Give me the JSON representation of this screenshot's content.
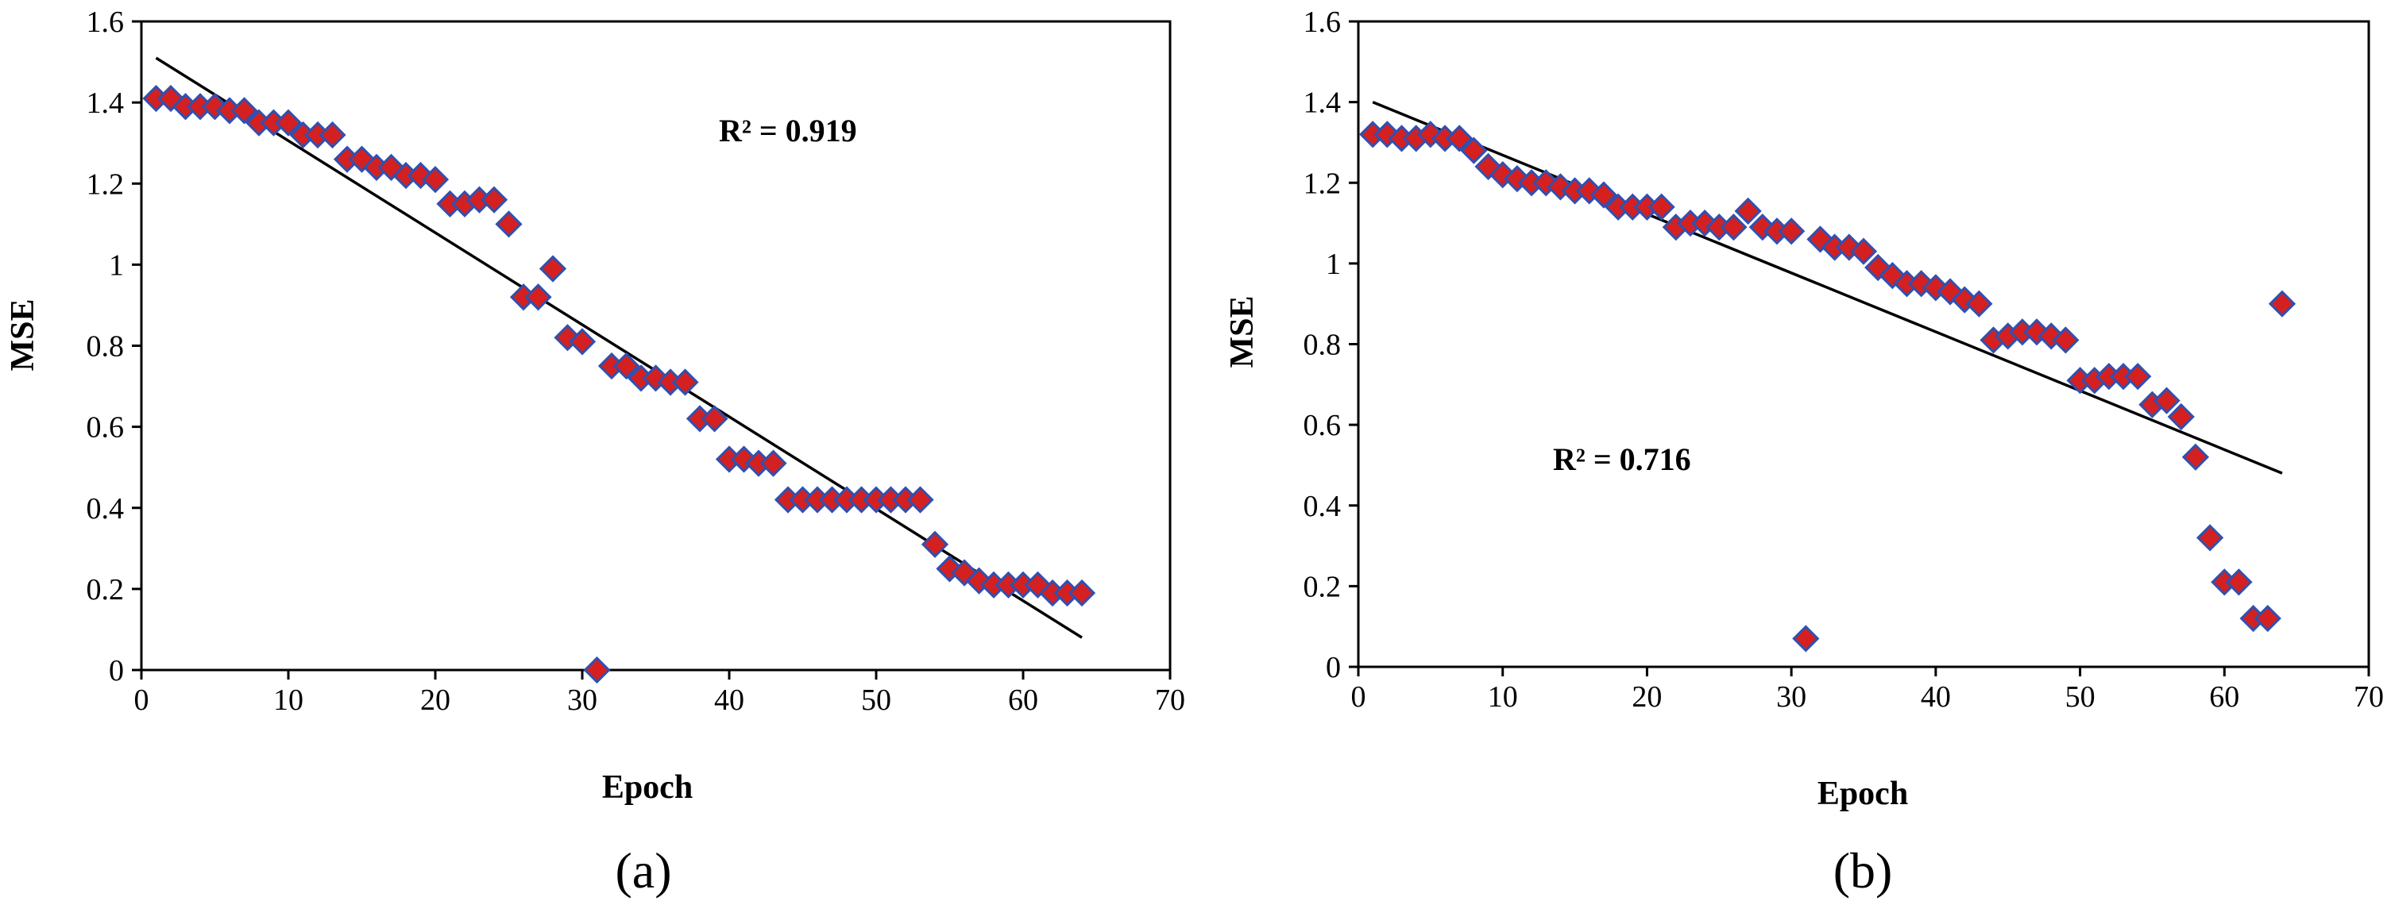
{
  "chart_data": [
    {
      "type": "scatter",
      "panel": "(a)",
      "xlabel": "Epoch",
      "ylabel": "MSE",
      "xlim": [
        0,
        70
      ],
      "ylim": [
        0,
        1.6
      ],
      "xticks": [
        "0",
        "10",
        "20",
        "30",
        "40",
        "50",
        "60",
        "70"
      ],
      "yticks": [
        "0",
        "0.2",
        "0.4",
        "0.6",
        "0.8",
        "1",
        "1.2",
        "1.4",
        "1.6"
      ],
      "annotation": "R² = 0.919",
      "marker_color": "#d42020",
      "marker_edge": "#3050b0",
      "trendline": {
        "x": [
          1,
          64
        ],
        "y": [
          1.51,
          0.08
        ]
      },
      "x": [
        1,
        2,
        3,
        4,
        5,
        6,
        7,
        8,
        9,
        10,
        11,
        12,
        13,
        14,
        15,
        16,
        17,
        18,
        19,
        20,
        21,
        22,
        23,
        24,
        25,
        26,
        27,
        28,
        29,
        30,
        31,
        32,
        33,
        34,
        35,
        36,
        37,
        38,
        39,
        40,
        41,
        42,
        43,
        44,
        45,
        46,
        47,
        48,
        49,
        50,
        51,
        52,
        53,
        54,
        55,
        56,
        57,
        58,
        59,
        60,
        61,
        62,
        63,
        64
      ],
      "y": [
        1.41,
        1.41,
        1.39,
        1.39,
        1.39,
        1.38,
        1.38,
        1.35,
        1.35,
        1.35,
        1.32,
        1.32,
        1.32,
        1.26,
        1.26,
        1.24,
        1.24,
        1.22,
        1.22,
        1.21,
        1.15,
        1.15,
        1.16,
        1.16,
        1.1,
        0.92,
        0.92,
        0.99,
        0.82,
        0.81,
        0.0,
        0.75,
        0.75,
        0.72,
        0.72,
        0.71,
        0.71,
        0.62,
        0.62,
        0.52,
        0.52,
        0.51,
        0.51,
        0.42,
        0.42,
        0.42,
        0.42,
        0.42,
        0.42,
        0.42,
        0.42,
        0.42,
        0.42,
        0.31,
        0.25,
        0.24,
        0.22,
        0.21,
        0.21,
        0.21,
        0.21,
        0.19,
        0.19,
        0.19
      ]
    },
    {
      "type": "scatter",
      "panel": "(b)",
      "xlabel": "Epoch",
      "ylabel": "MSE",
      "xlim": [
        0,
        70
      ],
      "ylim": [
        0,
        1.6
      ],
      "xticks": [
        "0",
        "10",
        "20",
        "30",
        "40",
        "50",
        "60",
        "70"
      ],
      "yticks": [
        "0",
        "0.2",
        "0.4",
        "0.6",
        "0.8",
        "1",
        "1.2",
        "1.4",
        "1.6"
      ],
      "annotation": "R² = 0.716",
      "marker_color": "#d42020",
      "marker_edge": "#3050b0",
      "trendline": {
        "x": [
          1,
          64
        ],
        "y": [
          1.4,
          0.48
        ]
      },
      "x": [
        1,
        2,
        3,
        4,
        5,
        6,
        7,
        8,
        9,
        10,
        11,
        12,
        13,
        14,
        15,
        16,
        17,
        18,
        19,
        20,
        21,
        22,
        23,
        24,
        25,
        26,
        27,
        28,
        29,
        30,
        31,
        32,
        33,
        34,
        35,
        36,
        37,
        38,
        39,
        40,
        41,
        42,
        43,
        44,
        45,
        46,
        47,
        48,
        49,
        50,
        51,
        52,
        53,
        54,
        55,
        56,
        57,
        58,
        59,
        60,
        61,
        62,
        63,
        64
      ],
      "y": [
        1.32,
        1.32,
        1.31,
        1.31,
        1.32,
        1.31,
        1.31,
        1.28,
        1.24,
        1.22,
        1.21,
        1.2,
        1.2,
        1.19,
        1.18,
        1.18,
        1.17,
        1.14,
        1.14,
        1.14,
        1.14,
        1.09,
        1.1,
        1.1,
        1.09,
        1.09,
        1.13,
        1.09,
        1.08,
        1.08,
        0.07,
        1.06,
        1.04,
        1.04,
        1.03,
        0.99,
        0.97,
        0.95,
        0.95,
        0.94,
        0.93,
        0.91,
        0.9,
        0.81,
        0.82,
        0.83,
        0.83,
        0.82,
        0.81,
        0.71,
        0.71,
        0.72,
        0.72,
        0.72,
        0.65,
        0.66,
        0.62,
        0.52,
        0.32,
        0.21,
        0.21,
        0.12,
        0.12,
        0.9
      ]
    }
  ]
}
